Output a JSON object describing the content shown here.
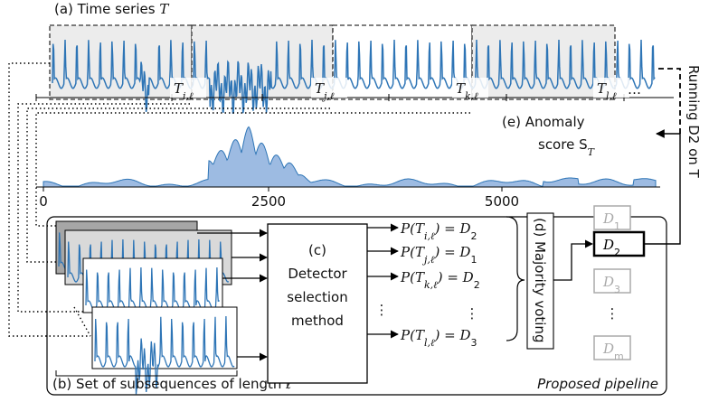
{
  "time_series": {
    "title": "(a) Time series ",
    "title_var": "T",
    "windows": [
      {
        "main": "T",
        "sub": "i,ℓ"
      },
      {
        "main": "T",
        "sub": "j,ℓ"
      },
      {
        "main": "T",
        "sub": "k,ℓ"
      },
      {
        "main": "T",
        "sub": "l,ℓ"
      }
    ],
    "ellipsis": "…"
  },
  "anomaly": {
    "line1": "(e) Anomaly",
    "line2": "score S",
    "line2_sub": "T",
    "ticks": [
      "0",
      "2500",
      "5000"
    ]
  },
  "running": "Running D2 on T",
  "pipeline": {
    "subsequences_label": "(b) Set of subsequences of length ℓ",
    "detector_method": [
      "(c)",
      "Detector",
      "selection",
      "method"
    ],
    "predictions": [
      {
        "lhs": "P(T",
        "sub": "i,ℓ",
        "rhs": ") = D",
        "rhs_sub": "2"
      },
      {
        "lhs": "P(T",
        "sub": "j,ℓ",
        "rhs": ") = D",
        "rhs_sub": "1"
      },
      {
        "lhs": "P(T",
        "sub": "k,ℓ",
        "rhs": ") = D",
        "rhs_sub": "2"
      },
      {
        "lhs": "P(T",
        "sub": "l,ℓ",
        "rhs": ") = D",
        "rhs_sub": "3"
      }
    ],
    "vertical_ellipsis": "⋮",
    "voting": "(d) Majority voting",
    "detectors": [
      {
        "main": "D",
        "sub": "1"
      },
      {
        "main": "D",
        "sub": "2"
      },
      {
        "main": "D",
        "sub": "3"
      },
      {
        "main": "D",
        "sub": "m"
      }
    ],
    "caption": "Proposed pipeline"
  }
}
